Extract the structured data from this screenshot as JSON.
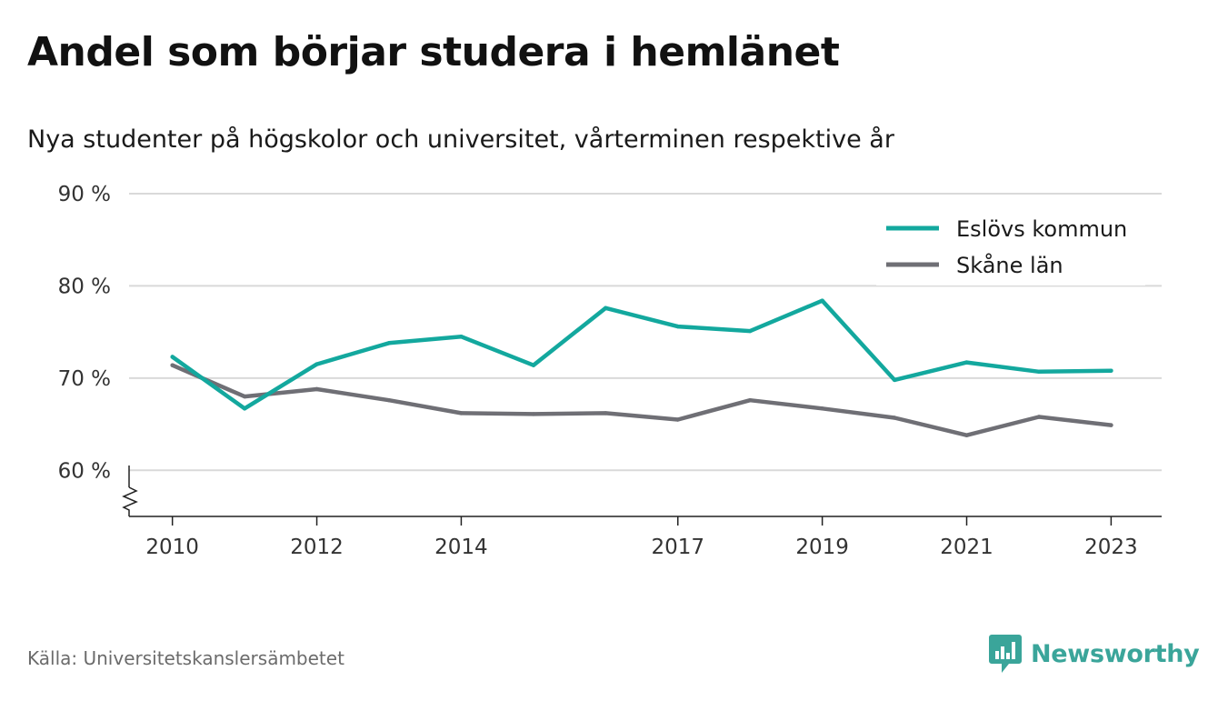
{
  "title": "Andel som börjar studera i hemlänet",
  "subtitle": "Nya studenter på högskolor och universitet, vårterminen respektive år",
  "source": "Källa: Universitetskanslersämbetet",
  "brand": "Newsworthy",
  "colors": {
    "primary": "#13a89e",
    "secondary": "#6f6f75",
    "grid": "#d9d9d9",
    "axis": "#222222",
    "brand": "#3aa59a"
  },
  "chart_data": {
    "type": "line",
    "ylim": [
      55,
      90
    ],
    "y_ticks": [
      60,
      70,
      80,
      90
    ],
    "y_tick_labels": [
      "60 %",
      "70 %",
      "80 %",
      "90 %"
    ],
    "x_ticks": [
      2010,
      2012,
      2014,
      2017,
      2019,
      2021,
      2023
    ],
    "x_tick_labels": [
      "2010",
      "2012",
      "2014",
      "2017",
      "2019",
      "2021",
      "2023"
    ],
    "xlim": [
      2009.4,
      2023.7
    ],
    "axis_break": true,
    "grid": true,
    "legend_position": "top-right",
    "x": [
      2010,
      2011,
      2012,
      2013,
      2014,
      2015,
      2016,
      2017,
      2018,
      2019,
      2020,
      2021,
      2022,
      2023
    ],
    "series": [
      {
        "name": "Eslövs kommun",
        "color": "#13a89e",
        "values": [
          72.3,
          66.7,
          71.5,
          73.8,
          74.5,
          71.4,
          77.6,
          75.6,
          75.1,
          78.4,
          69.8,
          71.7,
          70.7,
          70.8
        ]
      },
      {
        "name": "Skåne län",
        "color": "#6f6f75",
        "values": [
          71.4,
          68.0,
          68.8,
          67.6,
          66.2,
          66.1,
          66.2,
          65.5,
          67.6,
          66.7,
          65.7,
          63.8,
          65.8,
          64.9
        ]
      }
    ]
  }
}
